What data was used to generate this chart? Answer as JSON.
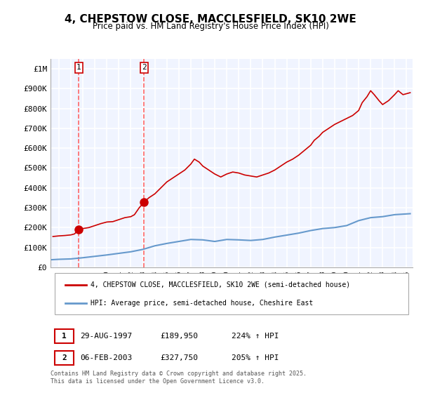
{
  "title": "4, CHEPSTOW CLOSE, MACCLESFIELD, SK10 2WE",
  "subtitle": "Price paid vs. HM Land Registry's House Price Index (HPI)",
  "legend_house": "4, CHEPSTOW CLOSE, MACCLESFIELD, SK10 2WE (semi-detached house)",
  "legend_hpi": "HPI: Average price, semi-detached house, Cheshire East",
  "sale1_label": "1",
  "sale1_date": "29-AUG-1997",
  "sale1_price": "£189,950",
  "sale1_hpi": "224% ↑ HPI",
  "sale2_label": "2",
  "sale2_date": "06-FEB-2003",
  "sale2_price": "£327,750",
  "sale2_hpi": "205% ↑ HPI",
  "footer": "Contains HM Land Registry data © Crown copyright and database right 2025.\nThis data is licensed under the Open Government Licence v3.0.",
  "house_color": "#cc0000",
  "hpi_color": "#6699cc",
  "vline_color": "#ff6666",
  "ylim": [
    0,
    1050000
  ],
  "xlim_start": 1995.3,
  "xlim_end": 2025.5,
  "bg_color": "#f0f4ff",
  "plot_bg": "#f0f4ff",
  "grid_color": "#ffffff",
  "sale1_x": 1997.66,
  "sale1_y": 189950,
  "sale2_x": 2003.1,
  "sale2_y": 327750,
  "hpi_years": [
    1995.4,
    1996,
    1997,
    1998,
    1999,
    2000,
    2001,
    2002,
    2003,
    2004,
    2005,
    2006,
    2007,
    2008,
    2009,
    2010,
    2011,
    2012,
    2013,
    2014,
    2015,
    2016,
    2017,
    2018,
    2019,
    2020,
    2021,
    2022,
    2023,
    2024,
    2025.3
  ],
  "hpi_values": [
    38000,
    40000,
    42000,
    48000,
    55000,
    62000,
    70000,
    78000,
    90000,
    108000,
    120000,
    130000,
    140000,
    138000,
    130000,
    140000,
    138000,
    135000,
    140000,
    152000,
    162000,
    172000,
    185000,
    195000,
    200000,
    210000,
    235000,
    250000,
    255000,
    265000,
    270000
  ],
  "house_years": [
    1995.5,
    1996,
    1996.5,
    1997,
    1997.3,
    1997.66,
    1998,
    1998.5,
    1999,
    1999.5,
    2000,
    2000.5,
    2001,
    2001.5,
    2002,
    2002.3,
    2002.7,
    2003.1,
    2003.5,
    2004,
    2004.5,
    2005,
    2005.5,
    2006,
    2006.5,
    2007,
    2007.3,
    2007.7,
    2008,
    2008.5,
    2009,
    2009.5,
    2010,
    2010.5,
    2011,
    2011.5,
    2012,
    2012.5,
    2013,
    2013.5,
    2014,
    2014.5,
    2015,
    2015.5,
    2016,
    2016.5,
    2017,
    2017.3,
    2017.7,
    2018,
    2018.5,
    2019,
    2019.5,
    2020,
    2020.5,
    2021,
    2021.3,
    2021.7,
    2022,
    2022.3,
    2022.7,
    2023,
    2023.5,
    2024,
    2024.3,
    2024.7,
    2025.3
  ],
  "house_values": [
    155000,
    158000,
    160000,
    163000,
    168000,
    189950,
    195000,
    200000,
    210000,
    220000,
    228000,
    230000,
    240000,
    250000,
    255000,
    265000,
    300000,
    327750,
    350000,
    370000,
    400000,
    430000,
    450000,
    470000,
    490000,
    520000,
    545000,
    530000,
    510000,
    490000,
    470000,
    455000,
    470000,
    480000,
    475000,
    465000,
    460000,
    455000,
    465000,
    475000,
    490000,
    510000,
    530000,
    545000,
    565000,
    590000,
    615000,
    640000,
    660000,
    680000,
    700000,
    720000,
    735000,
    750000,
    765000,
    790000,
    830000,
    860000,
    890000,
    870000,
    840000,
    820000,
    840000,
    870000,
    890000,
    870000,
    880000
  ]
}
